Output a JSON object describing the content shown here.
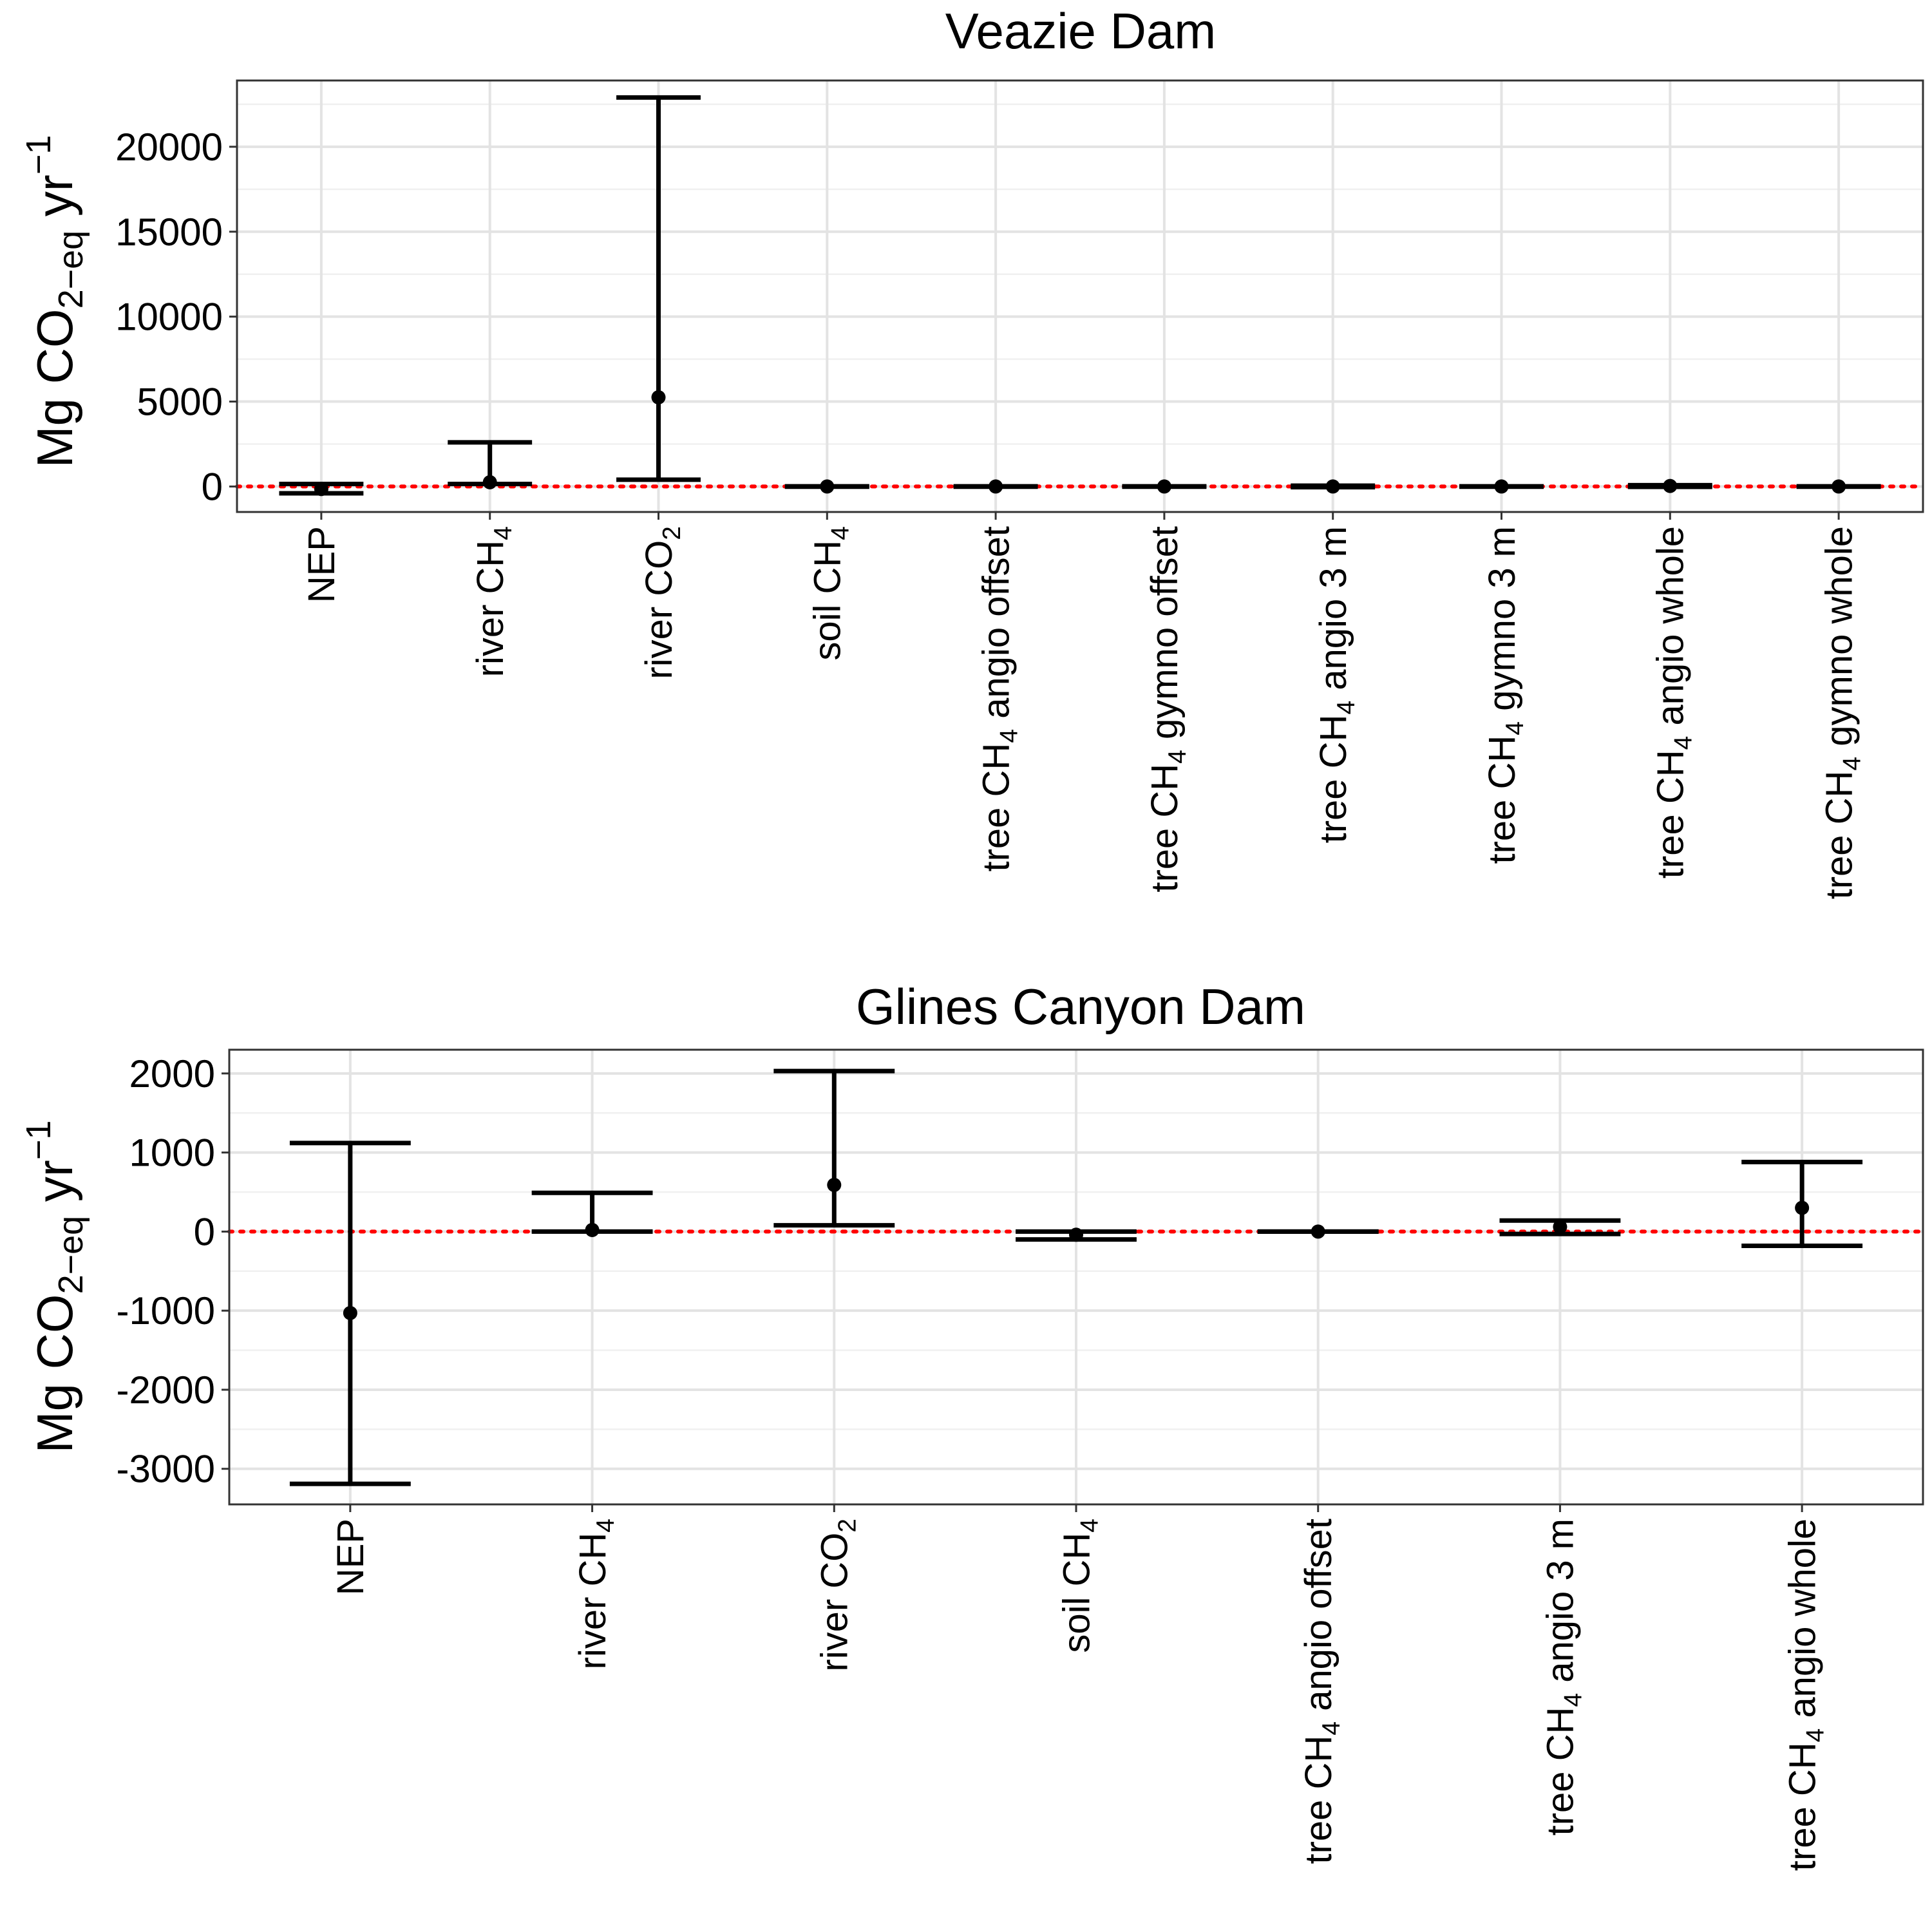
{
  "chart_data": [
    {
      "type": "errorbar",
      "title": "Veazie Dam",
      "ylabel": "Mg CO2-eq yr-1",
      "ylim": [
        -1500,
        23900
      ],
      "yticks": [
        0,
        5000,
        10000,
        15000,
        20000
      ],
      "grid": true,
      "reference_line": {
        "y": 0,
        "color": "#ff0000",
        "style": "dotted"
      },
      "categories": [
        "NEP",
        "river CH4",
        "river CO2",
        "soil CH4",
        "tree CH4 angio offset",
        "tree CH4 gymno offset",
        "tree CH4 angio 3 m",
        "tree CH4 gymno 3 m",
        "tree CH4 angio whole",
        "tree CH4 gymno whole"
      ],
      "values": [
        -150,
        250,
        5250,
        0,
        0,
        0,
        0,
        0,
        30,
        0
      ],
      "lower": [
        -400,
        150,
        400,
        -10,
        -10,
        -10,
        -40,
        -10,
        -20,
        -10
      ],
      "upper": [
        150,
        2600,
        22900,
        10,
        10,
        10,
        50,
        10,
        80,
        10
      ]
    },
    {
      "type": "errorbar",
      "title": "Glines Canyon Dam",
      "ylabel": "Mg CO2-eq yr-1",
      "ylim": [
        -3450,
        2300
      ],
      "yticks": [
        -3000,
        -2000,
        -1000,
        0,
        1000,
        2000
      ],
      "grid": true,
      "reference_line": {
        "y": 0,
        "color": "#ff0000",
        "style": "dotted"
      },
      "categories": [
        "NEP",
        "river CH4",
        "river CO2",
        "soil CH4",
        "tree CH4 angio offset",
        "tree CH4 angio 3 m",
        "tree CH4 angio whole"
      ],
      "values": [
        -1030,
        20,
        590,
        -40,
        0,
        60,
        300
      ],
      "lower": [
        -3190,
        0,
        80,
        -100,
        0,
        -30,
        -180
      ],
      "upper": [
        1120,
        490,
        2030,
        0,
        0,
        140,
        880
      ]
    }
  ]
}
